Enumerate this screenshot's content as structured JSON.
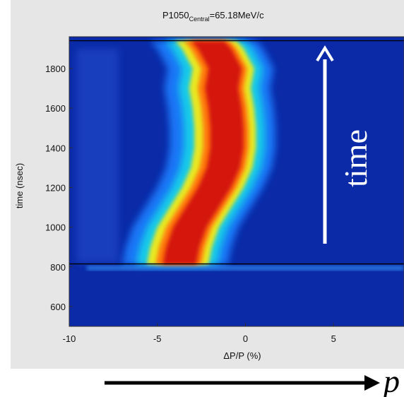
{
  "chart_data": {
    "type": "heatmap",
    "title_main": "P1050",
    "title_sub": "Central",
    "title_value": "=65.18MeV/c",
    "xlabel": "ΔP/P (%)",
    "ylabel": "time (nsec)",
    "xlim": [
      -10,
      9
    ],
    "ylim": [
      500,
      1960
    ],
    "xticks": [
      -10,
      -5,
      0,
      5
    ],
    "yticks": [
      600,
      800,
      1000,
      1200,
      1400,
      1600,
      1800
    ],
    "reference_lines_y": [
      815,
      1940
    ],
    "colormap": "jet",
    "ridge": [
      {
        "t": 810,
        "dp": -3.6
      },
      {
        "t": 900,
        "dp": -3.4
      },
      {
        "t": 1000,
        "dp": -3.0
      },
      {
        "t": 1100,
        "dp": -2.3
      },
      {
        "t": 1200,
        "dp": -1.6
      },
      {
        "t": 1300,
        "dp": -1.1
      },
      {
        "t": 1400,
        "dp": -0.9
      },
      {
        "t": 1500,
        "dp": -0.9
      },
      {
        "t": 1600,
        "dp": -1.0
      },
      {
        "t": 1700,
        "dp": -1.2
      },
      {
        "t": 1800,
        "dp": -1.0
      },
      {
        "t": 1900,
        "dp": -1.6
      },
      {
        "t": 1940,
        "dp": -2.0
      }
    ],
    "arrow_vertical_label": "time",
    "arrow_horizontal_label": "p"
  },
  "colors": {
    "background_blue": "#0a2aa8",
    "panel_gray": "#e6e6e6",
    "arrow": "#ffffff"
  }
}
